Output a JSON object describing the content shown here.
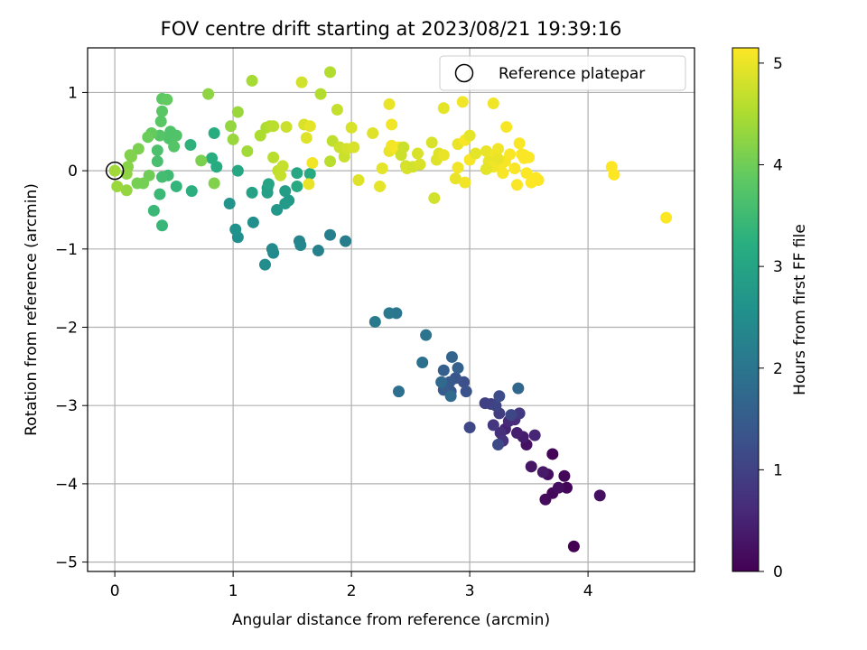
{
  "chart_data": {
    "type": "scatter",
    "title": "FOV centre drift starting at 2023/08/21 19:39:16",
    "xlabel": "Angular distance from reference (arcmin)",
    "ylabel": "Rotation from reference (arcmin)",
    "xlim": [
      -0.23,
      4.9
    ],
    "ylim": [
      -5.12,
      1.57
    ],
    "x_ticks": [
      0,
      1,
      2,
      3,
      4
    ],
    "y_ticks": [
      1,
      0,
      -1,
      -2,
      -3,
      -4,
      -5
    ],
    "grid": true,
    "legend": {
      "position": "top-right",
      "entries": [
        "Reference platepar"
      ]
    },
    "reference_point": {
      "x": 0,
      "y": 0
    },
    "colorbar": {
      "label": "Hours from first FF file",
      "colormap": "viridis",
      "range": [
        0,
        5.15
      ],
      "ticks": [
        0,
        1,
        2,
        3,
        4,
        5
      ]
    },
    "points": [
      [
        3.88,
        -4.8,
        0.0
      ],
      [
        3.7,
        -3.62,
        0.05
      ],
      [
        3.82,
        -4.05,
        0.08
      ],
      [
        3.8,
        -3.9,
        0.1
      ],
      [
        3.7,
        -4.12,
        0.12
      ],
      [
        3.64,
        -4.2,
        0.15
      ],
      [
        3.66,
        -3.88,
        0.18
      ],
      [
        3.75,
        -4.05,
        0.2
      ],
      [
        4.1,
        -4.15,
        0.22
      ],
      [
        3.48,
        -3.5,
        0.25
      ],
      [
        3.52,
        -3.78,
        0.3
      ],
      [
        3.62,
        -3.85,
        0.35
      ],
      [
        3.45,
        -3.4,
        0.4
      ],
      [
        3.4,
        -3.35,
        0.45
      ],
      [
        3.3,
        -3.3,
        0.5
      ],
      [
        3.55,
        -3.38,
        0.55
      ],
      [
        3.33,
        -3.2,
        0.6
      ],
      [
        3.38,
        -3.18,
        0.65
      ],
      [
        3.26,
        -3.35,
        0.7
      ],
      [
        3.28,
        -3.45,
        0.75
      ],
      [
        3.2,
        -3.25,
        0.8
      ],
      [
        3.42,
        -3.1,
        0.85
      ],
      [
        3.25,
        -3.1,
        0.9
      ],
      [
        3.18,
        -2.98,
        0.95
      ],
      [
        3.13,
        -2.97,
        1.0
      ],
      [
        3.22,
        -3.0,
        1.05
      ],
      [
        3.35,
        -3.12,
        1.1
      ],
      [
        3.0,
        -3.28,
        1.12
      ],
      [
        3.24,
        -3.5,
        1.15
      ],
      [
        3.25,
        -2.88,
        1.2
      ],
      [
        2.95,
        -2.7,
        1.25
      ],
      [
        2.97,
        -2.82,
        1.3
      ],
      [
        2.88,
        -2.65,
        1.35
      ],
      [
        2.84,
        -2.82,
        1.4
      ],
      [
        2.83,
        -2.7,
        1.45
      ],
      [
        2.78,
        -2.8,
        1.5
      ],
      [
        2.78,
        -2.55,
        1.55
      ],
      [
        2.9,
        -2.52,
        1.6
      ],
      [
        2.85,
        -2.38,
        1.65
      ],
      [
        3.41,
        -2.78,
        1.7
      ],
      [
        2.76,
        -2.7,
        1.75
      ],
      [
        2.84,
        -2.88,
        1.8
      ],
      [
        2.4,
        -2.82,
        1.85
      ],
      [
        2.6,
        -2.45,
        1.9
      ],
      [
        2.63,
        -2.1,
        1.95
      ],
      [
        2.38,
        -1.82,
        2.0
      ],
      [
        2.32,
        -1.82,
        2.05
      ],
      [
        2.2,
        -1.93,
        2.1
      ],
      [
        1.95,
        -0.9,
        2.15
      ],
      [
        1.82,
        -0.82,
        2.2
      ],
      [
        1.72,
        -1.02,
        2.25
      ],
      [
        1.56,
        -0.9,
        2.3
      ],
      [
        1.57,
        -0.95,
        2.35
      ],
      [
        1.34,
        -1.05,
        2.4
      ],
      [
        1.33,
        -1.0,
        2.45
      ],
      [
        1.27,
        -1.2,
        2.5
      ],
      [
        1.17,
        -0.66,
        2.55
      ],
      [
        1.04,
        -0.85,
        2.55
      ],
      [
        1.02,
        -0.75,
        2.6
      ],
      [
        0.97,
        -0.42,
        2.65
      ],
      [
        1.37,
        -0.5,
        2.7
      ],
      [
        1.47,
        -0.38,
        2.75
      ],
      [
        1.44,
        -0.42,
        2.8
      ],
      [
        1.44,
        -0.26,
        2.85
      ],
      [
        1.29,
        -0.22,
        2.85
      ],
      [
        1.29,
        -0.28,
        2.9
      ],
      [
        1.16,
        -0.28,
        2.95
      ],
      [
        1.3,
        -0.17,
        3.0
      ],
      [
        1.04,
        0.0,
        3.05
      ],
      [
        1.54,
        -0.03,
        3.05
      ],
      [
        1.65,
        -0.04,
        3.1
      ],
      [
        1.54,
        -0.2,
        3.1
      ],
      [
        0.86,
        0.05,
        3.15
      ],
      [
        0.84,
        0.48,
        3.2
      ],
      [
        0.82,
        0.16,
        3.2
      ],
      [
        0.65,
        -0.26,
        3.25
      ],
      [
        0.64,
        0.33,
        3.3
      ],
      [
        0.52,
        -0.2,
        3.35
      ],
      [
        0.4,
        -0.7,
        3.4
      ],
      [
        0.38,
        -0.3,
        3.45
      ],
      [
        0.33,
        -0.51,
        3.45
      ],
      [
        0.45,
        -0.06,
        3.5
      ],
      [
        0.4,
        -0.08,
        3.55
      ],
      [
        0.36,
        0.12,
        3.6
      ],
      [
        0.36,
        0.26,
        3.65
      ],
      [
        0.46,
        0.41,
        3.7
      ],
      [
        0.52,
        0.45,
        3.72
      ],
      [
        0.38,
        0.45,
        3.75
      ],
      [
        0.39,
        0.63,
        3.8
      ],
      [
        0.4,
        0.76,
        3.8
      ],
      [
        0.4,
        0.92,
        3.85
      ],
      [
        0.44,
        0.91,
        3.88
      ],
      [
        0.31,
        0.48,
        3.9
      ],
      [
        0.28,
        0.43,
        3.95
      ],
      [
        0.29,
        -0.06,
        4.0
      ],
      [
        0.24,
        -0.16,
        4.05
      ],
      [
        0.19,
        -0.16,
        4.05
      ],
      [
        0.2,
        0.28,
        4.1
      ],
      [
        0.14,
        0.18,
        4.15
      ],
      [
        0.13,
        0.2,
        4.15
      ],
      [
        0.11,
        0.05,
        4.2
      ],
      [
        0.1,
        -0.04,
        4.25
      ],
      [
        0.1,
        -0.25,
        4.3
      ],
      [
        0.02,
        -0.2,
        4.35
      ],
      [
        0.0,
        0.0,
        4.4
      ],
      [
        0.47,
        0.5,
        3.7
      ],
      [
        0.5,
        0.31,
        3.75
      ],
      [
        0.73,
        0.13,
        4.1
      ],
      [
        0.84,
        -0.16,
        4.15
      ],
      [
        0.79,
        0.98,
        4.25
      ],
      [
        0.98,
        0.57,
        4.3
      ],
      [
        1.0,
        0.4,
        4.35
      ],
      [
        1.04,
        0.75,
        4.35
      ],
      [
        1.12,
        0.25,
        4.4
      ],
      [
        1.16,
        1.15,
        4.45
      ],
      [
        1.23,
        0.45,
        4.5
      ],
      [
        1.28,
        0.55,
        4.5
      ],
      [
        1.31,
        0.57,
        4.55
      ],
      [
        1.34,
        0.57,
        4.6
      ],
      [
        1.34,
        0.17,
        4.6
      ],
      [
        1.38,
        0.0,
        4.65
      ],
      [
        1.4,
        -0.06,
        4.7
      ],
      [
        1.42,
        0.06,
        4.7
      ],
      [
        1.45,
        0.56,
        4.75
      ],
      [
        1.58,
        1.13,
        4.8
      ],
      [
        1.6,
        0.59,
        4.85
      ],
      [
        1.62,
        0.42,
        4.9
      ],
      [
        1.65,
        0.57,
        4.95
      ],
      [
        1.64,
        -0.17,
        5.0
      ],
      [
        1.67,
        0.1,
        5.05
      ],
      [
        1.74,
        0.98,
        4.55
      ],
      [
        1.82,
        1.26,
        4.55
      ],
      [
        1.82,
        0.12,
        4.6
      ],
      [
        1.84,
        0.38,
        4.65
      ],
      [
        1.88,
        0.78,
        4.7
      ],
      [
        1.9,
        0.3,
        4.75
      ],
      [
        1.94,
        0.18,
        4.75
      ],
      [
        1.96,
        0.28,
        4.8
      ],
      [
        2.0,
        0.55,
        4.85
      ],
      [
        2.02,
        0.3,
        4.85
      ],
      [
        2.06,
        -0.12,
        4.9
      ],
      [
        2.18,
        0.48,
        4.9
      ],
      [
        2.24,
        -0.2,
        4.95
      ],
      [
        2.26,
        0.03,
        4.95
      ],
      [
        2.32,
        0.85,
        5.0
      ],
      [
        2.32,
        0.25,
        5.0
      ],
      [
        2.34,
        0.32,
        5.05
      ],
      [
        2.34,
        0.59,
        5.05
      ],
      [
        2.38,
        0.28,
        5.1
      ],
      [
        2.4,
        0.3,
        5.1
      ],
      [
        2.42,
        0.2,
        4.75
      ],
      [
        2.44,
        0.3,
        4.75
      ],
      [
        2.46,
        0.06,
        4.8
      ],
      [
        2.47,
        0.03,
        4.85
      ],
      [
        2.52,
        0.05,
        4.8
      ],
      [
        2.56,
        0.22,
        4.85
      ],
      [
        2.58,
        0.08,
        4.85
      ],
      [
        2.68,
        0.36,
        4.85
      ],
      [
        2.7,
        -0.35,
        4.8
      ],
      [
        2.72,
        0.14,
        4.9
      ],
      [
        2.74,
        0.22,
        4.9
      ],
      [
        2.78,
        0.8,
        4.95
      ],
      [
        2.78,
        0.2,
        5.0
      ],
      [
        2.88,
        -0.1,
        5.0
      ],
      [
        2.9,
        0.34,
        5.0
      ],
      [
        2.9,
        0.04,
        5.05
      ],
      [
        2.94,
        0.88,
        5.05
      ],
      [
        2.96,
        -0.15,
        5.05
      ],
      [
        2.96,
        0.39,
        5.1
      ],
      [
        3.0,
        0.14,
        5.1
      ],
      [
        3.0,
        0.45,
        4.95
      ],
      [
        3.14,
        0.25,
        5.0
      ],
      [
        3.16,
        0.12,
        5.0
      ],
      [
        3.2,
        0.86,
        5.05
      ],
      [
        3.22,
        0.22,
        5.05
      ],
      [
        3.24,
        0.28,
        5.05
      ],
      [
        3.26,
        0.05,
        5.1
      ],
      [
        3.28,
        -0.03,
        5.1
      ],
      [
        3.3,
        0.12,
        5.1
      ],
      [
        3.31,
        0.56,
        5.1
      ],
      [
        3.34,
        0.21,
        5.12
      ],
      [
        3.38,
        0.03,
        5.12
      ],
      [
        3.4,
        -0.18,
        5.12
      ],
      [
        3.42,
        0.35,
        5.12
      ],
      [
        3.44,
        0.21,
        5.12
      ],
      [
        3.46,
        0.16,
        5.13
      ],
      [
        3.48,
        -0.03,
        5.13
      ],
      [
        3.5,
        0.17,
        5.13
      ],
      [
        3.52,
        -0.15,
        5.14
      ],
      [
        3.54,
        -0.12,
        5.14
      ],
      [
        3.56,
        -0.09,
        5.14
      ],
      [
        3.58,
        -0.12,
        5.15
      ],
      [
        4.2,
        0.05,
        5.15
      ],
      [
        4.22,
        -0.05,
        5.15
      ],
      [
        4.66,
        -0.6,
        5.15
      ],
      [
        3.2,
        0.05,
        5.05
      ],
      [
        3.24,
        0.15,
        5.0
      ],
      [
        3.14,
        0.02,
        4.95
      ],
      [
        3.05,
        0.22,
        4.95
      ],
      [
        3.46,
        0.2,
        5.12
      ]
    ]
  }
}
